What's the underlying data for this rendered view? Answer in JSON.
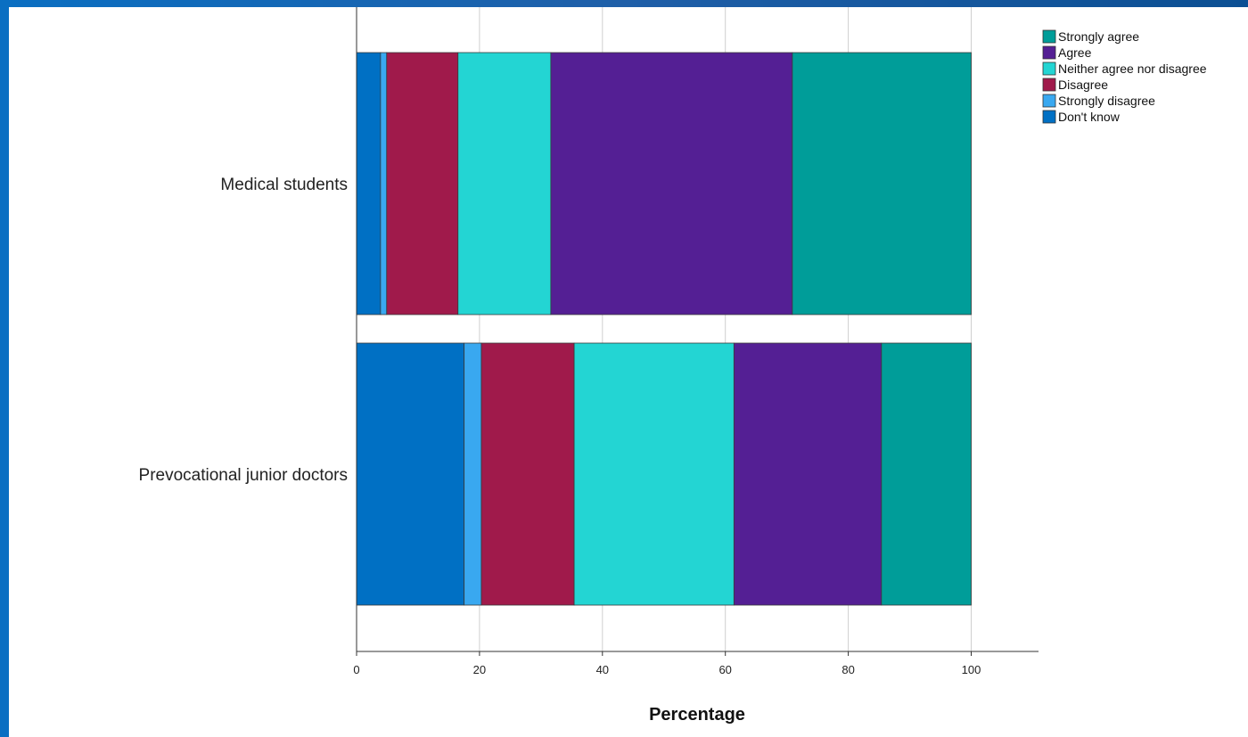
{
  "chart_data": {
    "type": "bar",
    "orientation": "horizontal",
    "stacked": true,
    "title": "",
    "xlabel": "Percentage",
    "ylabel": "",
    "xlim": [
      0,
      111
    ],
    "xticks": [
      0,
      20,
      40,
      60,
      80,
      100
    ],
    "grid": "vertical",
    "legend_position": "top-right",
    "categories": [
      "Medical students",
      "Prevocational junior doctors"
    ],
    "series": [
      {
        "name": "Don't know",
        "color": "#0070c4",
        "values": [
          3.9,
          17.5
        ]
      },
      {
        "name": "Strongly disagree",
        "color": "#39a8f0",
        "values": [
          1.0,
          2.8
        ]
      },
      {
        "name": "Disagree",
        "color": "#a01a4b",
        "values": [
          11.6,
          15.1
        ]
      },
      {
        "name": "Neither agree nor disagree",
        "color": "#23d5d3",
        "values": [
          15.1,
          26.0
        ]
      },
      {
        "name": "Agree",
        "color": "#541f94",
        "values": [
          39.3,
          24.0
        ]
      },
      {
        "name": "Strongly agree",
        "color": "#009d99",
        "values": [
          29.1,
          14.6
        ]
      }
    ]
  }
}
